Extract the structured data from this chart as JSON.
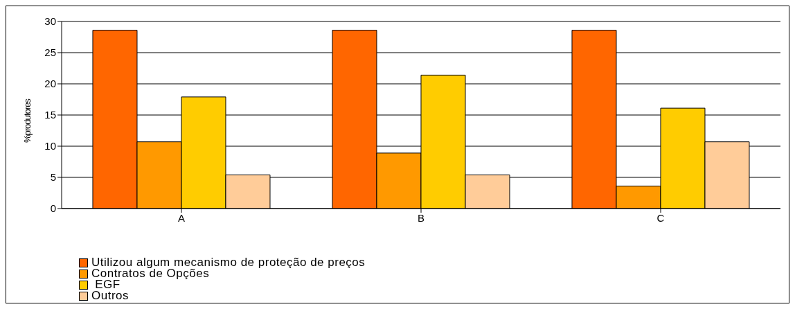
{
  "chart_data": {
    "type": "bar",
    "ylabel": "%produtores",
    "categories": [
      "A",
      "B",
      "C"
    ],
    "series": [
      {
        "name": "Utilizou algum mecanismo de proteção de preços",
        "color": "#ff6600",
        "values": [
          28.6,
          28.6,
          28.6
        ]
      },
      {
        "name": "Contratos de Opções",
        "color": "#ff9900",
        "values": [
          10.7,
          8.9,
          3.6
        ]
      },
      {
        "name": " EGF",
        "color": "#ffcc00",
        "values": [
          17.9,
          21.4,
          16.1
        ]
      },
      {
        "name": "Outros",
        "color": "#ffcc99",
        "values": [
          5.4,
          5.4,
          10.7
        ]
      }
    ],
    "ylim": [
      0,
      30
    ],
    "yticks": [
      0,
      5,
      10,
      15,
      20,
      25,
      30
    ],
    "grid": "y",
    "legend": "bottom left"
  }
}
